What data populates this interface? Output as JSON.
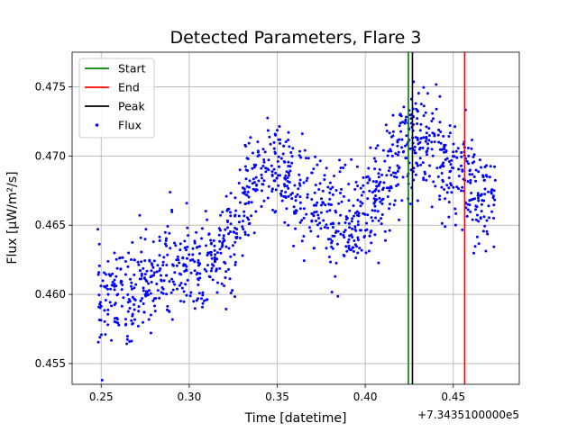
{
  "chart_data": {
    "type": "scatter",
    "title": "Detected Parameters, Flare 3",
    "xlabel": "Time [datetime]",
    "ylabel": "Flux [μW/m²/s]",
    "x_offset_label": "+7.3435100000e5",
    "xlim": [
      0.2335,
      0.4875
    ],
    "ylim": [
      0.4535,
      0.4775
    ],
    "x_ticks": [
      0.25,
      0.3,
      0.35,
      0.4,
      0.45
    ],
    "x_tick_labels": [
      "0.25",
      "0.30",
      "0.35",
      "0.40",
      "0.45"
    ],
    "y_ticks": [
      0.455,
      0.46,
      0.465,
      0.47,
      0.475
    ],
    "y_tick_labels": [
      "0.455",
      "0.460",
      "0.465",
      "0.470",
      "0.475"
    ],
    "grid": true,
    "legend_position": "top-left",
    "vlines": [
      {
        "name": "Start",
        "x": 0.4245,
        "color": "#008000"
      },
      {
        "name": "End",
        "x": 0.4565,
        "color": "#ff0000"
      },
      {
        "name": "Peak",
        "x": 0.4268,
        "color": "#000000"
      }
    ],
    "series": [
      {
        "name": "Flux",
        "color": "#0000ff",
        "x_range": [
          0.248,
          0.474
        ],
        "trend": [
          [
            0.248,
            0.4598
          ],
          [
            0.258,
            0.46
          ],
          [
            0.268,
            0.4598
          ],
          [
            0.275,
            0.4605
          ],
          [
            0.285,
            0.4615
          ],
          [
            0.295,
            0.462
          ],
          [
            0.305,
            0.4615
          ],
          [
            0.315,
            0.4625
          ],
          [
            0.325,
            0.4638
          ],
          [
            0.333,
            0.467
          ],
          [
            0.343,
            0.4688
          ],
          [
            0.353,
            0.469
          ],
          [
            0.363,
            0.4672
          ],
          [
            0.373,
            0.4665
          ],
          [
            0.383,
            0.465
          ],
          [
            0.393,
            0.4655
          ],
          [
            0.403,
            0.4665
          ],
          [
            0.413,
            0.4685
          ],
          [
            0.423,
            0.4705
          ],
          [
            0.43,
            0.4715
          ],
          [
            0.44,
            0.4702
          ],
          [
            0.45,
            0.4692
          ],
          [
            0.458,
            0.468
          ],
          [
            0.465,
            0.4672
          ],
          [
            0.474,
            0.4672
          ]
        ],
        "scatter_sd": 0.0018,
        "n_points": 1250
      }
    ]
  },
  "legend": {
    "items": [
      {
        "label": "Start",
        "color": "#008000",
        "kind": "line"
      },
      {
        "label": "End",
        "color": "#ff0000",
        "kind": "line"
      },
      {
        "label": "Peak",
        "color": "#000000",
        "kind": "line"
      },
      {
        "label": "Flux",
        "color": "#0000ff",
        "kind": "marker"
      }
    ]
  }
}
